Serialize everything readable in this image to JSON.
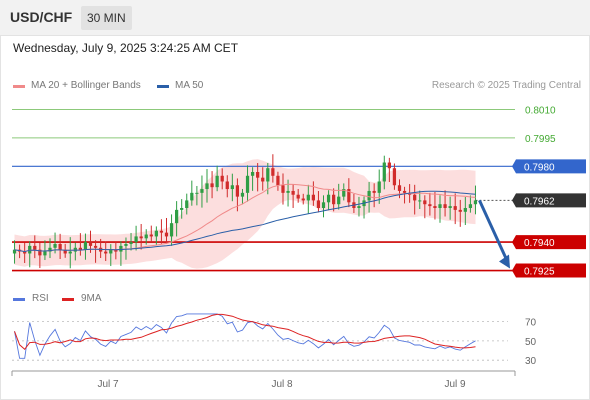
{
  "header": {
    "symbol": "USD/CHF",
    "timeframe": "30 MIN"
  },
  "datetime": "Wednesday, July 9, 2025 3:24:25 AM CET",
  "legend": {
    "ma20": "MA 20 + Bollinger Bands",
    "ma50": "MA 50",
    "credit": "Research © 2025 Trading Central",
    "rsi": "RSI",
    "ma9": "9MA"
  },
  "colors": {
    "ma20": "#f08a8a",
    "ma50": "#2a5fa8",
    "bands": "#fcd8d8",
    "bull": "#2f9e45",
    "bear": "#d12b2b",
    "resistance": "#3366cc",
    "support": "#cc0000",
    "target": "#8cc97a",
    "current": "#333333",
    "arrow": "#2a5fa8",
    "rsi": "#5577dd",
    "rsi_ma": "#dd2222"
  },
  "chart_data": [
    {
      "type": "candlestick",
      "title": "",
      "xlabel": "",
      "ylabel": "",
      "x_ticks": [
        "Jul 7",
        "Jul 8",
        "Jul 9"
      ],
      "ylim": [
        0.792,
        0.8015
      ],
      "grid": false,
      "legend_position": "top-left",
      "closes": [
        0.7936,
        0.7935,
        0.7934,
        0.7938,
        0.7936,
        0.7933,
        0.7935,
        0.7937,
        0.7939,
        0.7936,
        0.7934,
        0.7935,
        0.7937,
        0.7936,
        0.794,
        0.7938,
        0.7937,
        0.7935,
        0.7934,
        0.7936,
        0.7935,
        0.7938,
        0.7939,
        0.794,
        0.7943,
        0.7942,
        0.7944,
        0.7943,
        0.7946,
        0.7945,
        0.7943,
        0.795,
        0.7957,
        0.7958,
        0.7962,
        0.7966,
        0.7966,
        0.7968,
        0.7971,
        0.7969,
        0.7975,
        0.7972,
        0.7968,
        0.797,
        0.7964,
        0.7966,
        0.7975,
        0.7977,
        0.7974,
        0.7972,
        0.7979,
        0.7975,
        0.797,
        0.7966,
        0.7967,
        0.7965,
        0.7963,
        0.7962,
        0.7965,
        0.7962,
        0.7958,
        0.7961,
        0.7965,
        0.796,
        0.7964,
        0.7968,
        0.7961,
        0.7958,
        0.7959,
        0.7962,
        0.7967,
        0.7966,
        0.7972,
        0.7982,
        0.7979,
        0.797,
        0.7967,
        0.7966,
        0.7965,
        0.7962,
        0.7962,
        0.796,
        0.7959,
        0.7958,
        0.796,
        0.7958,
        0.7959,
        0.7957,
        0.7956,
        0.7958,
        0.796,
        0.7962
      ],
      "current_price": 0.7962,
      "levels": {
        "targets": [
          0.801,
          0.7995
        ],
        "resistance": 0.798,
        "pivot": 0.794,
        "support": 0.7925
      },
      "level_labels": [
        "0.8010",
        "0.7995",
        "0.7980",
        "0.7962",
        "0.7940",
        "0.7925"
      ],
      "series": [
        {
          "name": "MA 20 + Bollinger Bands"
        },
        {
          "name": "MA 50"
        }
      ],
      "projection": {
        "from": 0.7962,
        "to": 0.7925
      }
    },
    {
      "type": "line",
      "title": "",
      "ylim": [
        25,
        80
      ],
      "y_ticks": [
        "70",
        "50",
        "30"
      ],
      "series": [
        {
          "name": "RSI"
        },
        {
          "name": "9MA"
        }
      ]
    }
  ]
}
